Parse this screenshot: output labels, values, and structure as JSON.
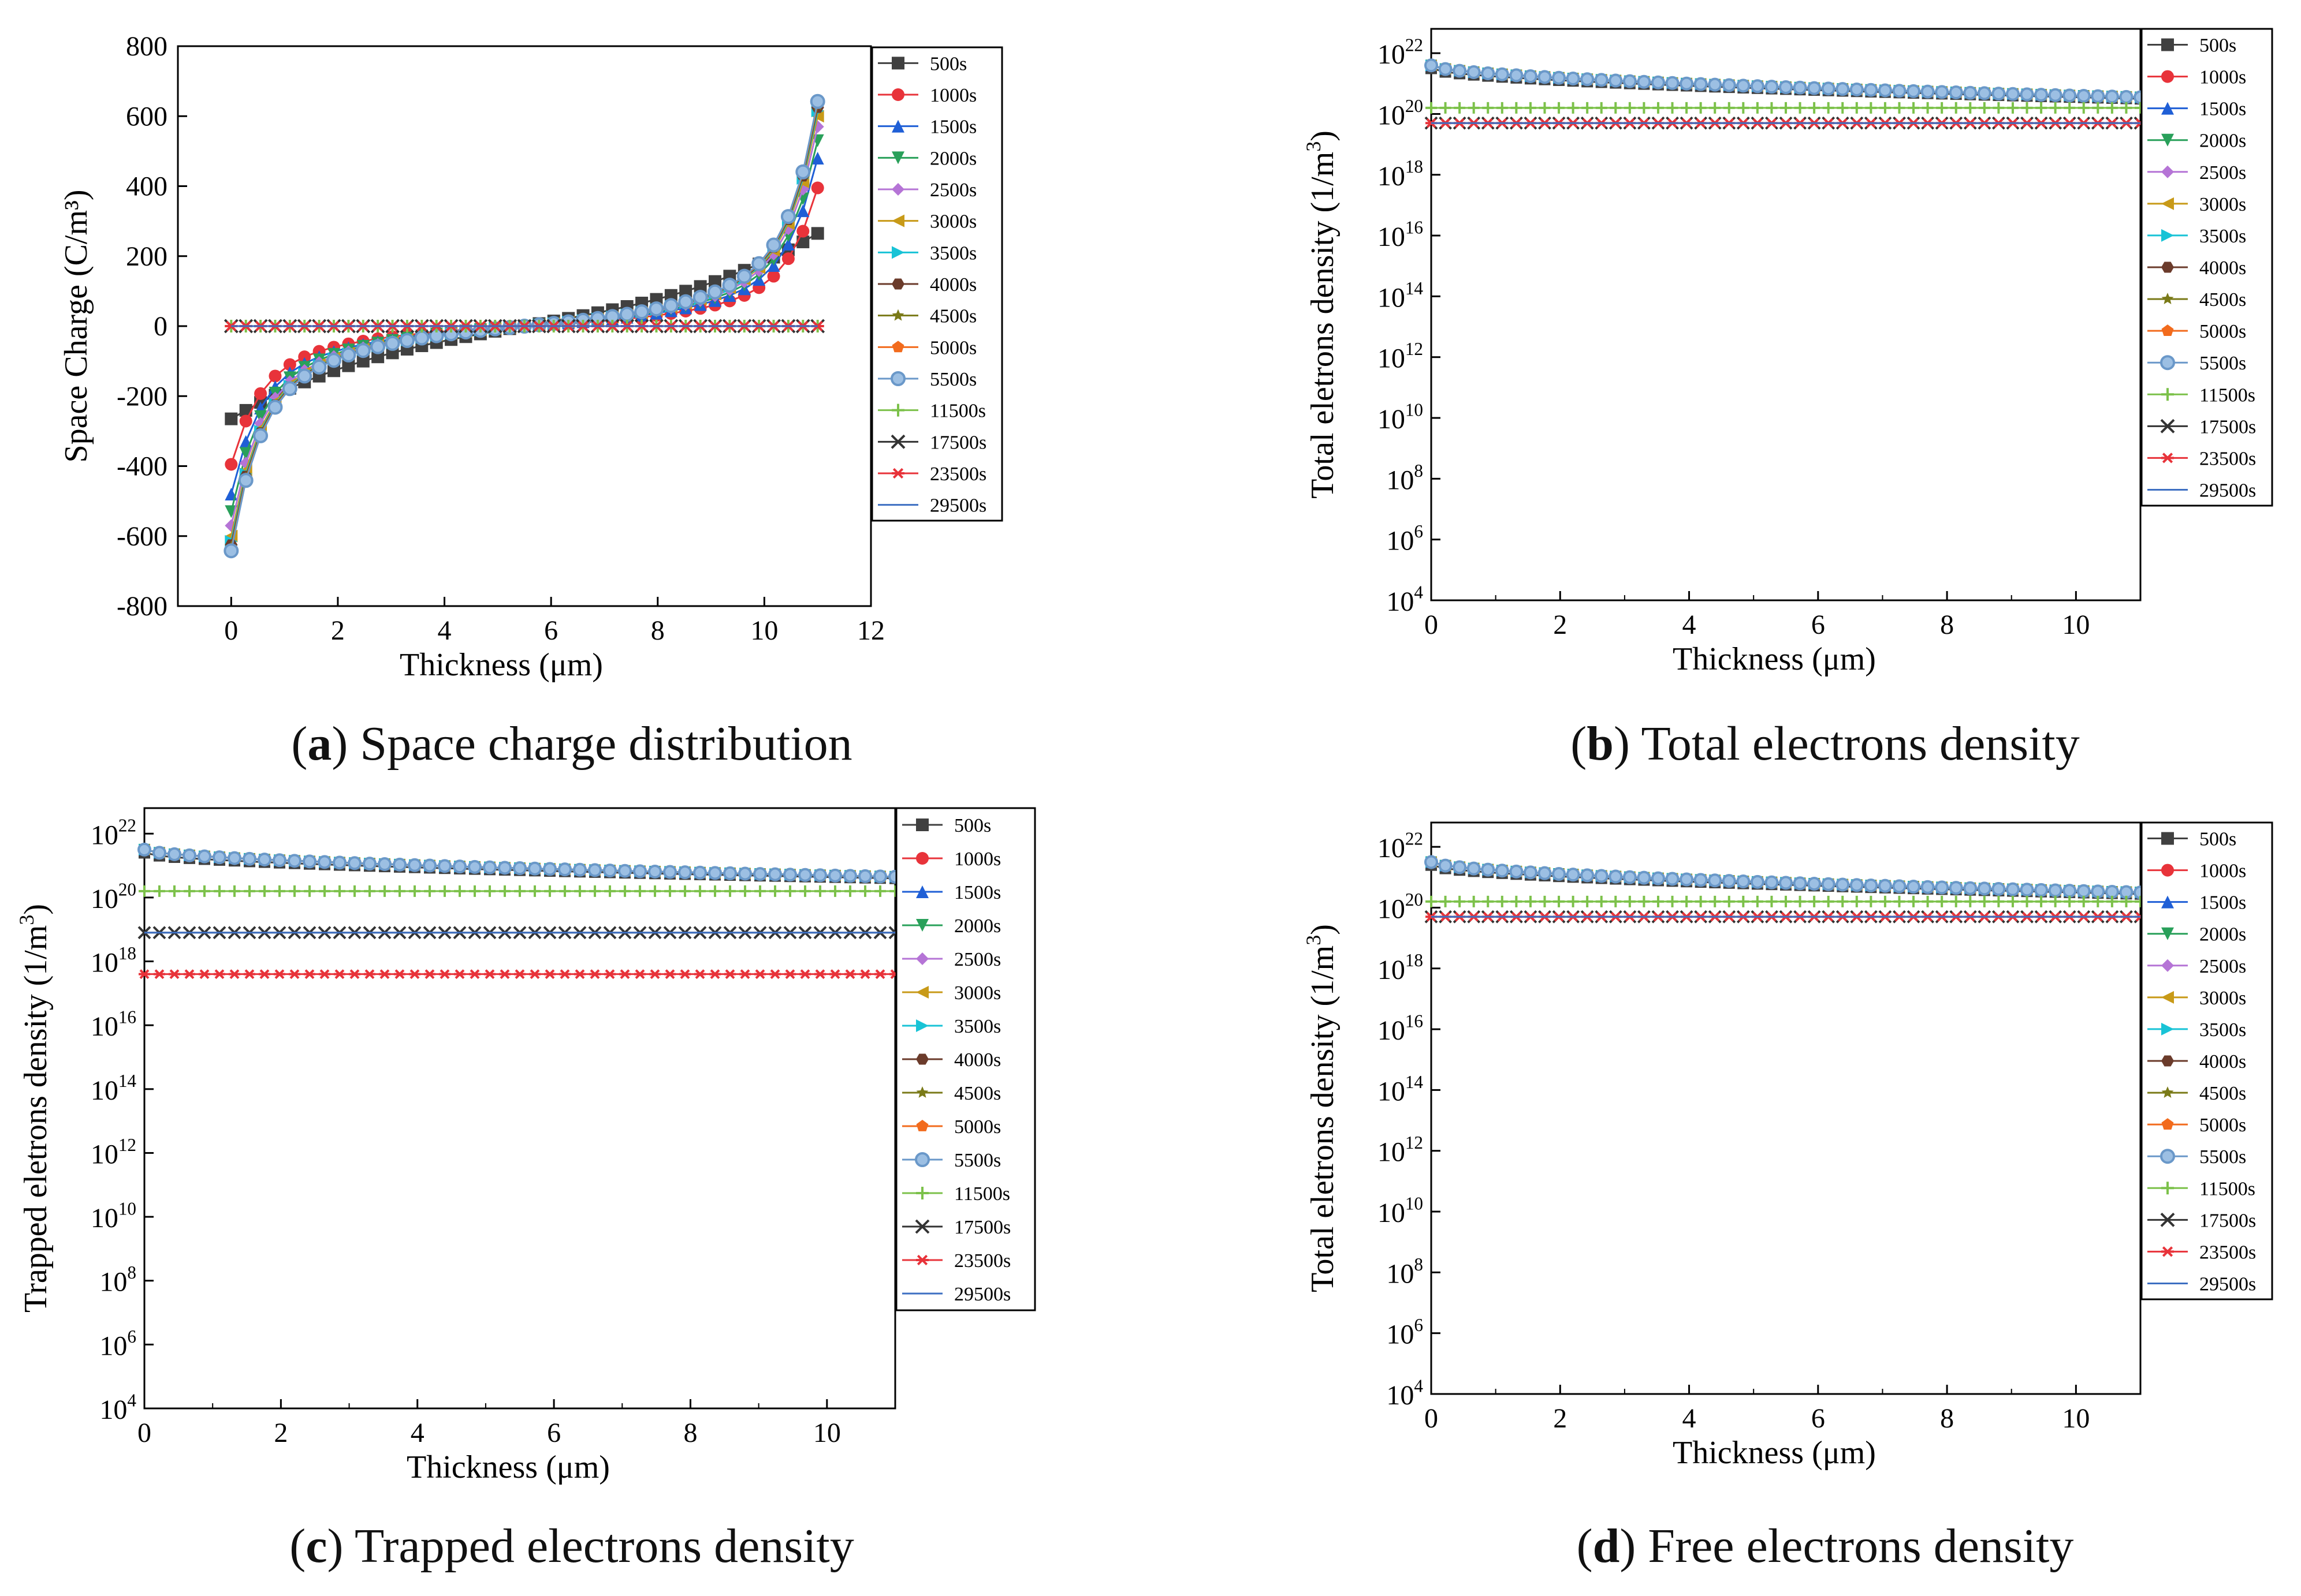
{
  "series_names": [
    "500s",
    "1000s",
    "1500s",
    "2000s",
    "2500s",
    "3000s",
    "3500s",
    "4000s",
    "4500s",
    "5000s",
    "5500s",
    "11500s",
    "17500s",
    "23500s",
    "29500s"
  ],
  "series_colors": [
    "#404040",
    "#e8333a",
    "#1f5fd6",
    "#29a05a",
    "#b574d6",
    "#c89a18",
    "#18c3d6",
    "#6b3b2b",
    "#7a7a18",
    "#f26b1d",
    "#6a98c9",
    "#7cc14a",
    "#333333",
    "#e8333a",
    "#3d6fc2"
  ],
  "series_markers": [
    "square",
    "circle",
    "triangle-up",
    "triangle-down",
    "diamond",
    "triangle-left",
    "triangle-right",
    "hexagon",
    "star",
    "pentagon",
    "sphere",
    "plus",
    "x",
    "asterisk",
    "none"
  ],
  "captions": [
    {
      "letter": "a",
      "text": "Space charge distribution"
    },
    {
      "letter": "b",
      "text": "Total electrons density"
    },
    {
      "letter": "c",
      "text": "Trapped electrons density"
    },
    {
      "letter": "d",
      "text": "Free electrons density"
    }
  ],
  "chart_data": [
    {
      "id": "a",
      "type": "scatter",
      "title": "Space charge distribution",
      "xlabel": "Thickness (μm)",
      "ylabel": "Space Charge (C/m³)",
      "xlim": [
        -1,
        12
      ],
      "ylim": [
        -800,
        800
      ],
      "xticks": [
        0,
        2,
        4,
        6,
        8,
        10,
        12
      ],
      "yticks": [
        -800,
        -600,
        -400,
        -200,
        0,
        200,
        400,
        600,
        800
      ],
      "x_range": [
        0,
        11
      ],
      "series": [
        {
          "name": "500s",
          "edge_value": 265,
          "shape": "linear"
        },
        {
          "name": "1000s",
          "edge_value": 395,
          "shape": "curved"
        },
        {
          "name": "1500s",
          "edge_value": 480,
          "shape": "curved"
        },
        {
          "name": "2000s",
          "edge_value": 530,
          "shape": "curved"
        },
        {
          "name": "2500s",
          "edge_value": 570,
          "shape": "curved"
        },
        {
          "name": "3000s",
          "edge_value": 600,
          "shape": "curved"
        },
        {
          "name": "3500s",
          "edge_value": 615,
          "shape": "curved"
        },
        {
          "name": "4000s",
          "edge_value": 625,
          "shape": "curved"
        },
        {
          "name": "4500s",
          "edge_value": 632,
          "shape": "curved"
        },
        {
          "name": "5000s",
          "edge_value": 638,
          "shape": "curved"
        },
        {
          "name": "5500s",
          "edge_value": 642,
          "shape": "curved"
        },
        {
          "name": "11500s",
          "edge_value": 0,
          "shape": "flat"
        },
        {
          "name": "17500s",
          "edge_value": 0,
          "shape": "flat"
        },
        {
          "name": "23500s",
          "edge_value": 0,
          "shape": "flat"
        },
        {
          "name": "29500s",
          "edge_value": 0,
          "shape": "flat"
        }
      ],
      "legend": "right-top"
    },
    {
      "id": "b",
      "type": "scatter",
      "title": "Total electrons density",
      "xlabel": "Thickness (μm)",
      "ylabel": "Total eletrons density (1/m³)",
      "xlim": [
        0,
        11
      ],
      "ylim_log10": [
        4,
        22.8
      ],
      "xticks": [
        0,
        2,
        4,
        6,
        8,
        10
      ],
      "ytick_exponents": [
        4,
        6,
        8,
        10,
        12,
        14,
        16,
        18,
        20,
        22
      ],
      "x_range": [
        0,
        11
      ],
      "series_log10_start_end": [
        [
          21.5,
          20.5
        ],
        [
          21.6,
          20.55
        ],
        [
          21.6,
          20.55
        ],
        [
          21.6,
          20.55
        ],
        [
          21.6,
          20.55
        ],
        [
          21.6,
          20.55
        ],
        [
          21.6,
          20.55
        ],
        [
          21.6,
          20.55
        ],
        [
          21.6,
          20.55
        ],
        [
          21.6,
          20.55
        ],
        [
          21.6,
          20.55
        ],
        [
          20.2,
          20.2
        ],
        [
          19.7,
          19.7
        ],
        [
          19.7,
          19.7
        ],
        [
          19.7,
          19.7
        ]
      ],
      "legend": "right-top"
    },
    {
      "id": "c",
      "type": "scatter",
      "title": "Trapped electrons density",
      "xlabel": "Thickness (μm)",
      "ylabel": "Trapped eletrons density (1/m³)",
      "xlim": [
        0,
        11
      ],
      "ylim_log10": [
        4,
        22.8
      ],
      "xticks": [
        0,
        2,
        4,
        6,
        8,
        10
      ],
      "ytick_exponents": [
        4,
        6,
        8,
        10,
        12,
        14,
        16,
        18,
        20,
        22
      ],
      "x_range": [
        0,
        11
      ],
      "series_log10_start_end": [
        [
          21.4,
          20.6
        ],
        [
          21.5,
          20.65
        ],
        [
          21.5,
          20.65
        ],
        [
          21.5,
          20.65
        ],
        [
          21.5,
          20.65
        ],
        [
          21.5,
          20.65
        ],
        [
          21.5,
          20.65
        ],
        [
          21.5,
          20.65
        ],
        [
          21.5,
          20.65
        ],
        [
          21.5,
          20.65
        ],
        [
          21.5,
          20.65
        ],
        [
          20.2,
          20.2
        ],
        [
          18.9,
          18.9
        ],
        [
          17.6,
          17.6
        ],
        [
          18.9,
          18.9
        ]
      ],
      "legend": "right-top"
    },
    {
      "id": "d",
      "type": "scatter",
      "title": "Free electrons density",
      "xlabel": "Thickness (μm)",
      "ylabel": "Total eletrons density (1/m³)",
      "xlim": [
        0,
        11
      ],
      "ylim_log10": [
        4,
        22.8
      ],
      "xticks": [
        0,
        2,
        4,
        6,
        8,
        10
      ],
      "ytick_exponents": [
        4,
        6,
        8,
        10,
        12,
        14,
        16,
        18,
        20,
        22
      ],
      "x_range": [
        0,
        11
      ],
      "series_log10_start_end": [
        [
          21.4,
          20.45
        ],
        [
          21.5,
          20.5
        ],
        [
          21.5,
          20.5
        ],
        [
          21.5,
          20.5
        ],
        [
          21.5,
          20.5
        ],
        [
          21.5,
          20.5
        ],
        [
          21.5,
          20.5
        ],
        [
          21.5,
          20.5
        ],
        [
          21.5,
          20.5
        ],
        [
          21.5,
          20.5
        ],
        [
          21.5,
          20.5
        ],
        [
          20.2,
          20.2
        ],
        [
          19.7,
          19.7
        ],
        [
          19.7,
          19.7
        ],
        [
          19.7,
          19.7
        ]
      ],
      "legend": "right-top"
    }
  ]
}
